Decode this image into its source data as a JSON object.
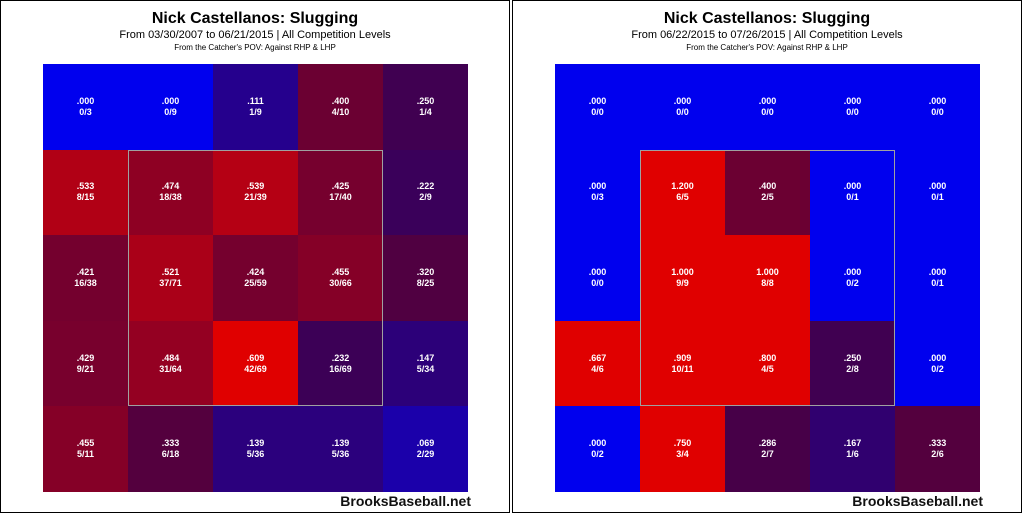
{
  "colors": {
    "cold": "#0000ee",
    "hot": "#e00000",
    "zone_border": "#a0a0a0"
  },
  "chart_data": [
    {
      "type": "heatmap",
      "title": "Nick Castellanos: Slugging",
      "subtitle": "From 03/30/2007 to 06/21/2015 | All Competition Levels",
      "note": "From the Catcher's POV:   Against RHP & LHP",
      "watermark": "BrooksBaseball.net",
      "rows": 5,
      "cols": 5,
      "cells": [
        [
          {
            "value": ".000",
            "count": "0/3"
          },
          {
            "value": ".000",
            "count": "0/9"
          },
          {
            "value": ".111",
            "count": "1/9"
          },
          {
            "value": ".400",
            "count": "4/10"
          },
          {
            "value": ".250",
            "count": "1/4"
          }
        ],
        [
          {
            "value": ".533",
            "count": "8/15"
          },
          {
            "value": ".474",
            "count": "18/38"
          },
          {
            "value": ".539",
            "count": "21/39"
          },
          {
            "value": ".425",
            "count": "17/40"
          },
          {
            "value": ".222",
            "count": "2/9"
          }
        ],
        [
          {
            "value": ".421",
            "count": "16/38"
          },
          {
            "value": ".521",
            "count": "37/71"
          },
          {
            "value": ".424",
            "count": "25/59"
          },
          {
            "value": ".455",
            "count": "30/66"
          },
          {
            "value": ".320",
            "count": "8/25"
          }
        ],
        [
          {
            "value": ".429",
            "count": "9/21"
          },
          {
            "value": ".484",
            "count": "31/64"
          },
          {
            "value": ".609",
            "count": "42/69"
          },
          {
            "value": ".232",
            "count": "16/69"
          },
          {
            "value": ".147",
            "count": "5/34"
          }
        ],
        [
          {
            "value": ".455",
            "count": "5/11"
          },
          {
            "value": ".333",
            "count": "6/18"
          },
          {
            "value": ".139",
            "count": "5/36"
          },
          {
            "value": ".139",
            "count": "5/36"
          },
          {
            "value": ".069",
            "count": "2/29"
          }
        ]
      ]
    },
    {
      "type": "heatmap",
      "title": "Nick Castellanos: Slugging",
      "subtitle": "From 06/22/2015 to 07/26/2015 | All Competition Levels",
      "note": "From the Catcher's POV:   Against RHP & LHP",
      "watermark": "BrooksBaseball.net",
      "rows": 5,
      "cols": 5,
      "cells": [
        [
          {
            "value": ".000",
            "count": "0/0"
          },
          {
            "value": ".000",
            "count": "0/0"
          },
          {
            "value": ".000",
            "count": "0/0"
          },
          {
            "value": ".000",
            "count": "0/0"
          },
          {
            "value": ".000",
            "count": "0/0"
          }
        ],
        [
          {
            "value": ".000",
            "count": "0/3"
          },
          {
            "value": "1.200",
            "count": "6/5"
          },
          {
            "value": ".400",
            "count": "2/5"
          },
          {
            "value": ".000",
            "count": "0/1"
          },
          {
            "value": ".000",
            "count": "0/1"
          }
        ],
        [
          {
            "value": ".000",
            "count": "0/0"
          },
          {
            "value": "1.000",
            "count": "9/9"
          },
          {
            "value": "1.000",
            "count": "8/8"
          },
          {
            "value": ".000",
            "count": "0/2"
          },
          {
            "value": ".000",
            "count": "0/1"
          }
        ],
        [
          {
            "value": ".667",
            "count": "4/6"
          },
          {
            "value": ".909",
            "count": "10/11"
          },
          {
            "value": ".800",
            "count": "4/5"
          },
          {
            "value": ".250",
            "count": "2/8"
          },
          {
            "value": ".000",
            "count": "0/2"
          }
        ],
        [
          {
            "value": ".000",
            "count": "0/2"
          },
          {
            "value": ".750",
            "count": "3/4"
          },
          {
            "value": ".286",
            "count": "2/7"
          },
          {
            "value": ".167",
            "count": "1/6"
          },
          {
            "value": ".333",
            "count": "2/6"
          }
        ]
      ]
    }
  ]
}
